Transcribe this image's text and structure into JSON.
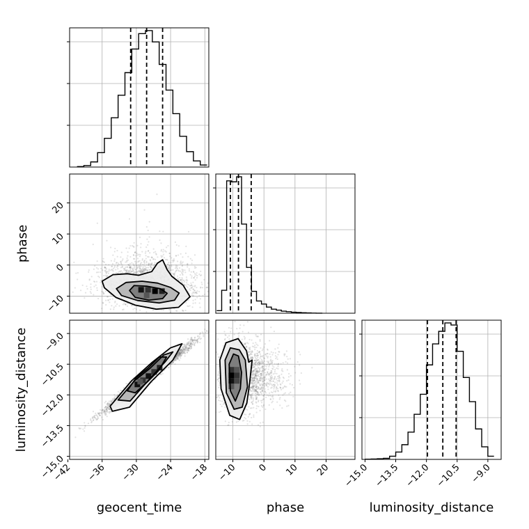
{
  "chart_data": {
    "type": "corner",
    "parameters": [
      "geocent_time",
      "phase",
      "luminosity_distance"
    ],
    "axis_ranges": {
      "geocent_time": [
        -41.7,
        -17.3
      ],
      "phase": [
        -15.5,
        29.3
      ],
      "luminosity_distance": [
        -15.15,
        -8.35
      ]
    },
    "ticks": {
      "geocent_time": {
        "values": [
          -42,
          -36,
          -30,
          -24,
          -18
        ],
        "labels": [
          "−42",
          "−36",
          "−30",
          "−24",
          "−18"
        ]
      },
      "phase": {
        "values": [
          -10,
          0,
          10,
          20
        ],
        "labels": [
          "−10",
          "0",
          "10",
          "20"
        ]
      },
      "luminosity_distance": {
        "values": [
          -15.0,
          -13.5,
          -12.0,
          -10.5,
          -9.0
        ],
        "labels": [
          "−15.0",
          "−13.5",
          "−12.0",
          "−10.5",
          "−9.0"
        ]
      }
    },
    "marginals": {
      "geocent_time": {
        "bin_edges": [
          -40.4,
          -39.2,
          -38.0,
          -36.8,
          -35.6,
          -34.4,
          -33.2,
          -32.0,
          -30.8,
          -29.6,
          -28.4,
          -27.2,
          -26.0,
          -24.8,
          -23.6,
          -22.4,
          -21.2,
          -20.0,
          -18.8,
          -17.6
        ],
        "counts": [
          0.5,
          1.5,
          5,
          14,
          28,
          48,
          70,
          92,
          115,
          130,
          133,
          122,
          100,
          75,
          52,
          30,
          15,
          6,
          2
        ],
        "quantiles": [
          -31.0,
          -28.2,
          -25.4
        ]
      },
      "phase": {
        "bin_edges": [
          -15.2,
          -13.6,
          -12.0,
          -10.4,
          -8.8,
          -7.2,
          -5.6,
          -4.0,
          -2.4,
          -0.8,
          0.8,
          2.4,
          4.0,
          5.6,
          7.2,
          8.8,
          10.4,
          12.0,
          13.6,
          15.2,
          16.8,
          18.8
        ],
        "counts": [
          5,
          45,
          260,
          258,
          268,
          175,
          90,
          43,
          24,
          18,
          12,
          8,
          6,
          4,
          3,
          2,
          1.5,
          1,
          0.5,
          0.3,
          0.1
        ],
        "quantiles": [
          -10.8,
          -8.2,
          -4.1
        ]
      },
      "luminosity_distance": {
        "bin_edges": [
          -15.0,
          -14.7,
          -14.4,
          -14.1,
          -13.8,
          -13.5,
          -13.2,
          -12.9,
          -12.6,
          -12.3,
          -12.0,
          -11.7,
          -11.4,
          -11.1,
          -10.8,
          -10.5,
          -10.2,
          -9.9,
          -9.6,
          -9.3,
          -9.0,
          -8.7
        ],
        "counts": [
          0.2,
          0.4,
          0.6,
          1,
          3,
          7,
          14,
          26,
          43,
          62,
          90,
          110,
          122,
          130,
          128,
          103,
          78,
          55,
          29,
          12,
          3
        ],
        "quantiles": [
          -11.95,
          -11.2,
          -10.55
        ]
      }
    },
    "pairs": [
      {
        "x": "geocent_time",
        "y": "phase",
        "mean": [
          -27.8,
          -6.0
        ],
        "sd": [
          3.9,
          6.4
        ],
        "corr": -0.1,
        "skew": "phase-tail-positive",
        "contours": [
          {
            "level": "inner",
            "points": [
              [
                -31.2,
                -8.2
              ],
              [
                -30.4,
                -6.6
              ],
              [
                -28.2,
                -6.8
              ],
              [
                -25.8,
                -7.6
              ],
              [
                -24.6,
                -9.1
              ],
              [
                -25.4,
                -10.8
              ],
              [
                -27.8,
                -11.3
              ],
              [
                -30.2,
                -10.4
              ]
            ]
          },
          {
            "level": "middle",
            "points": [
              [
                -33.5,
                -7.6
              ],
              [
                -31.8,
                -5.6
              ],
              [
                -29.0,
                -5.2
              ],
              [
                -26.3,
                -5.8
              ],
              [
                -24.0,
                -7.2
              ],
              [
                -22.5,
                -9.0
              ],
              [
                -23.3,
                -11.3
              ],
              [
                -26.0,
                -12.2
              ],
              [
                -29.8,
                -11.4
              ],
              [
                -32.6,
                -9.8
              ]
            ]
          },
          {
            "level": "outer",
            "points": [
              [
                -36.0,
                -5.2
              ],
              [
                -34.1,
                -3.1
              ],
              [
                -31.6,
                -2.8
              ],
              [
                -29.6,
                -3.3
              ],
              [
                -27.3,
                -2.1
              ],
              [
                -26.3,
                0.6
              ],
              [
                -25.4,
                1.7
              ],
              [
                -24.6,
                -1.5
              ],
              [
                -23.8,
                -3.6
              ],
              [
                -21.8,
                -6.5
              ],
              [
                -20.6,
                -10.2
              ],
              [
                -22.6,
                -13.6
              ],
              [
                -26.5,
                -14.2
              ],
              [
                -30.2,
                -12.9
              ],
              [
                -33.6,
                -10.4
              ],
              [
                -35.6,
                -7.3
              ]
            ]
          }
        ]
      },
      {
        "x": "geocent_time",
        "y": "luminosity_distance",
        "mean": [
          -27.9,
          -11.1
        ],
        "sd": [
          3.9,
          0.85
        ],
        "corr": 0.985,
        "contours": [
          {
            "level": "inner",
            "points": [
              [
                -31.6,
                -11.8
              ],
              [
                -30.0,
                -11.15
              ],
              [
                -28.0,
                -10.7
              ],
              [
                -26.0,
                -10.15
              ],
              [
                -24.7,
                -10.15
              ],
              [
                -26.2,
                -10.85
              ],
              [
                -28.2,
                -11.4
              ],
              [
                -30.2,
                -11.9
              ]
            ]
          },
          {
            "level": "middle",
            "points": [
              [
                -33.2,
                -12.25
              ],
              [
                -30.3,
                -11.3
              ],
              [
                -27.6,
                -10.7
              ],
              [
                -25.2,
                -10.05
              ],
              [
                -23.6,
                -9.9
              ],
              [
                -25.0,
                -10.4
              ],
              [
                -27.6,
                -11.2
              ],
              [
                -31.1,
                -12.3
              ]
            ]
          },
          {
            "level": "outer",
            "points": [
              [
                -34.6,
                -12.55
              ],
              [
                -30.8,
                -11.3
              ],
              [
                -27.2,
                -10.4
              ],
              [
                -24.0,
                -9.7
              ],
              [
                -22.0,
                -9.5
              ],
              [
                -23.6,
                -10.3
              ],
              [
                -27.4,
                -11.35
              ],
              [
                -31.2,
                -12.6
              ],
              [
                -34.2,
                -12.8
              ]
            ]
          }
        ]
      },
      {
        "x": "phase",
        "y": "luminosity_distance",
        "mean": [
          -8.2,
          -11.1
        ],
        "sd": [
          5.8,
          0.8
        ],
        "corr": -0.15,
        "skew": "phase-tail-positive",
        "contours": [
          {
            "level": "inner",
            "points": [
              [
                -11.2,
                -10.5
              ],
              [
                -9.8,
                -10.0
              ],
              [
                -8.2,
                -10.1
              ],
              [
                -7.2,
                -10.9
              ],
              [
                -7.6,
                -11.7
              ],
              [
                -9.2,
                -12.3
              ],
              [
                -10.8,
                -11.8
              ]
            ]
          },
          {
            "level": "middle",
            "points": [
              [
                -12.5,
                -10.3
              ],
              [
                -10.8,
                -9.7
              ],
              [
                -7.9,
                -9.8
              ],
              [
                -6.0,
                -10.3
              ],
              [
                -5.3,
                -11.6
              ],
              [
                -7.0,
                -12.6
              ],
              [
                -9.6,
                -12.7
              ],
              [
                -12.1,
                -11.9
              ]
            ]
          },
          {
            "level": "outer",
            "points": [
              [
                -14.2,
                -10.3
              ],
              [
                -12.2,
                -9.45
              ],
              [
                -8.3,
                -9.25
              ],
              [
                -5.6,
                -9.85
              ],
              [
                -4.9,
                -10.4
              ],
              [
                -3.8,
                -10.3
              ],
              [
                -4.6,
                -11.4
              ],
              [
                -5.5,
                -12.4
              ],
              [
                -7.8,
                -13.2
              ],
              [
                -11.0,
                -13.0
              ],
              [
                -13.8,
                -11.7
              ]
            ]
          }
        ]
      }
    ],
    "grid": true,
    "colors": {
      "line": "#000000",
      "grid": "#b0b0b0",
      "points": "#7a7a7a",
      "frame": "#000000"
    }
  }
}
